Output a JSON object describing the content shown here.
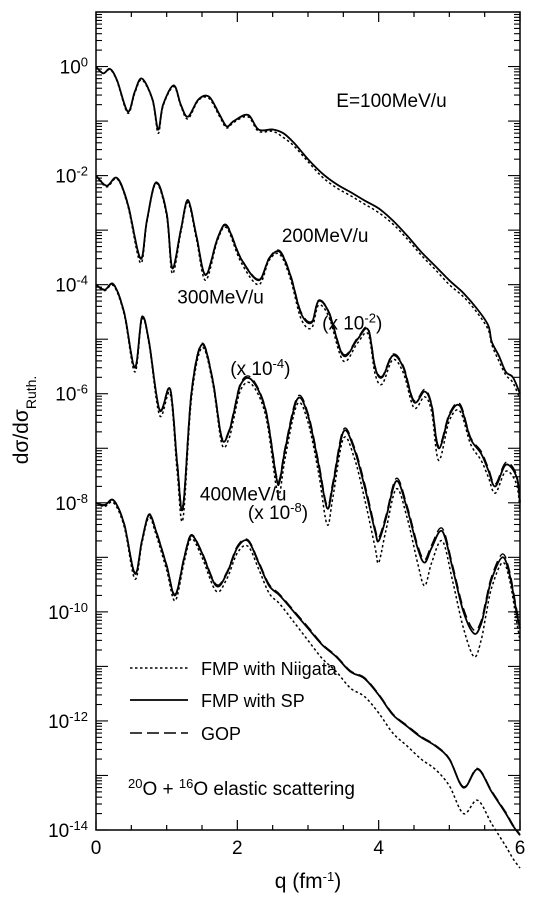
{
  "chart_data": {
    "type": "line",
    "xlabel": {
      "base": "q (fm",
      "sup": "-1",
      "tail": ")"
    },
    "ylabel": {
      "main": "dσ/dσ",
      "sub": "Ruth."
    },
    "xlim": [
      0,
      6
    ],
    "ylim": [
      1e-14,
      10
    ],
    "yscale": "log",
    "x_ticks": [
      "0",
      "2",
      "4",
      "6"
    ],
    "x_tick_values": [
      0,
      2,
      4,
      6
    ],
    "y_ticks": [
      {
        "value": 1,
        "base": "10",
        "exp": "0"
      },
      {
        "value": 0.01,
        "base": "10",
        "exp": "-2"
      },
      {
        "value": 0.0001,
        "base": "10",
        "exp": "-4"
      },
      {
        "value": 1e-06,
        "base": "10",
        "exp": "-6"
      },
      {
        "value": 1e-08,
        "base": "10",
        "exp": "-8"
      },
      {
        "value": 1e-10,
        "base": "10",
        "exp": "-10"
      },
      {
        "value": 1e-12,
        "base": "10",
        "exp": "-12"
      },
      {
        "value": 1e-14,
        "base": "10",
        "exp": "-14"
      }
    ],
    "annotations": [
      {
        "text": "E=100MeV/u",
        "q": 3.4,
        "y": 0.18
      },
      {
        "text": "200MeV/u",
        "q": 2.63,
        "y": 0.0006
      },
      {
        "text": "(x 10",
        "sup": "-2",
        "tail": ")",
        "q": 3.2,
        "y": 1.5e-05
      },
      {
        "text": "300MeV/u",
        "q": 1.15,
        "y": 4.5e-05
      },
      {
        "text": "(x 10",
        "sup": "-4",
        "tail": ")",
        "q": 1.9,
        "y": 2.2e-06
      },
      {
        "text": "400MeV/u",
        "q": 1.47,
        "y": 1.1e-08
      },
      {
        "text": "(x 10",
        "sup": "-8",
        "tail": ")",
        "q": 2.15,
        "y": 5e-09
      }
    ],
    "legend": {
      "placement": "bottom-left",
      "entries": [
        {
          "label": "FMP with Niigata",
          "dash": "dotted"
        },
        {
          "label": "FMP with SP",
          "dash": "solid"
        },
        {
          "label": "GOP",
          "dash": "dashed"
        }
      ]
    },
    "reaction_label": {
      "sup1": "20",
      "part1": "O + ",
      "sup2": "16",
      "part2": "O elastic scattering"
    },
    "series": [
      {
        "name": "E=100MeV/u",
        "q": [
          0.0,
          0.1,
          0.2,
          0.3,
          0.45,
          0.55,
          0.65,
          0.8,
          0.88,
          0.95,
          1.1,
          1.2,
          1.3,
          1.45,
          1.6,
          1.75,
          1.85,
          1.95,
          2.15,
          2.3,
          2.5,
          2.65,
          2.8,
          3.0,
          3.2,
          3.4,
          3.6,
          3.8,
          4.0,
          4.2,
          4.4,
          4.6,
          4.8,
          5.0,
          5.2,
          5.4,
          5.55,
          5.6,
          5.7,
          5.8,
          5.9,
          6.0
        ],
        "sp": [
          1.0,
          0.75,
          0.9,
          0.55,
          0.15,
          0.35,
          0.6,
          0.25,
          0.07,
          0.2,
          0.45,
          0.2,
          0.12,
          0.25,
          0.28,
          0.13,
          0.08,
          0.1,
          0.13,
          0.07,
          0.07,
          0.06,
          0.04,
          0.02,
          0.011,
          0.007,
          0.005,
          0.0035,
          0.0025,
          0.0015,
          0.0008,
          0.0004,
          0.00022,
          0.00012,
          7e-05,
          3.5e-05,
          1.8e-05,
          9e-06,
          5e-06,
          2.5e-06,
          2e-06,
          1e-06
        ],
        "niigata": [
          1.0,
          0.75,
          0.88,
          0.53,
          0.14,
          0.33,
          0.57,
          0.24,
          0.06,
          0.19,
          0.43,
          0.19,
          0.11,
          0.24,
          0.26,
          0.12,
          0.075,
          0.095,
          0.12,
          0.065,
          0.065,
          0.05,
          0.035,
          0.018,
          0.0095,
          0.006,
          0.0043,
          0.003,
          0.0021,
          0.0013,
          0.0007,
          0.00035,
          0.00019,
          0.0001,
          6e-05,
          3e-05,
          1.5e-05,
          8e-06,
          4e-06,
          2.2e-06,
          1.6e-06,
          8e-07
        ],
        "gop": [
          1.0,
          0.75,
          0.9,
          0.55,
          0.15,
          0.35,
          0.6,
          0.25,
          0.07,
          0.2,
          0.45,
          0.2,
          0.12,
          0.25,
          0.28,
          0.13,
          0.08,
          0.1,
          0.13,
          0.07,
          0.07,
          0.06,
          0.04,
          0.02,
          0.011,
          0.007,
          0.005,
          0.0035,
          0.0025,
          0.0015,
          0.0008,
          0.0004,
          0.00022,
          0.00012,
          7e-05,
          3.5e-05,
          1.8e-05,
          9e-06,
          5e-06,
          2.5e-06,
          2e-06,
          1e-06
        ]
      },
      {
        "name": "200MeV/u (x 10^-2)",
        "q": [
          0.0,
          0.15,
          0.3,
          0.45,
          0.63,
          0.72,
          0.85,
          1.0,
          1.08,
          1.2,
          1.3,
          1.42,
          1.55,
          1.72,
          1.85,
          2.05,
          2.3,
          2.45,
          2.6,
          2.75,
          2.9,
          3.05,
          3.15,
          3.3,
          3.5,
          3.7,
          3.85,
          3.95,
          4.05,
          4.2,
          4.35,
          4.5,
          4.65,
          4.75,
          4.85,
          5.0,
          5.15,
          5.3,
          5.45,
          5.55,
          5.65,
          5.8,
          5.95,
          6.0
        ],
        "sp": [
          0.01,
          0.0065,
          0.009,
          0.003,
          0.0003,
          0.0015,
          0.0075,
          0.002,
          0.0002,
          0.001,
          0.0035,
          0.0008,
          0.00015,
          0.0007,
          0.0012,
          0.0003,
          0.00012,
          0.0003,
          0.0004,
          0.00015,
          3e-05,
          2e-05,
          5e-05,
          3e-05,
          5e-06,
          1e-05,
          1.5e-05,
          3e-06,
          2e-06,
          5e-06,
          3e-06,
          7e-07,
          1.1e-06,
          6e-07,
          1e-07,
          4e-07,
          6e-07,
          1.5e-07,
          8e-08,
          4e-08,
          2e-08,
          5e-08,
          3e-08,
          1e-08
        ],
        "niigata": [
          0.01,
          0.0062,
          0.0087,
          0.0028,
          0.00025,
          0.0014,
          0.0072,
          0.0018,
          0.00016,
          0.0009,
          0.0032,
          0.0007,
          0.00012,
          0.00065,
          0.0011,
          0.00026,
          0.0001,
          0.00028,
          0.00036,
          0.00013,
          2.4e-05,
          1.6e-05,
          4.2e-05,
          2.5e-05,
          4e-06,
          8.5e-06,
          1.25e-05,
          2.3e-06,
          1.5e-06,
          4.2e-06,
          2.4e-06,
          5.5e-07,
          8.8e-07,
          4.6e-07,
          6e-08,
          3.2e-07,
          4.8e-07,
          1.2e-07,
          6e-08,
          3e-08,
          1.5e-08,
          3.8e-08,
          2.2e-08,
          7e-09
        ],
        "gop": [
          0.01,
          0.0065,
          0.0091,
          0.0031,
          0.00031,
          0.0015,
          0.0077,
          0.0021,
          0.00021,
          0.00102,
          0.0036,
          0.00082,
          0.000155,
          0.00072,
          0.00124,
          0.00031,
          0.000125,
          0.00031,
          0.00042,
          0.000155,
          3.2e-05,
          2.1e-05,
          5.2e-05,
          3.1e-05,
          5.3e-06,
          1.05e-05,
          1.6e-05,
          3.2e-06,
          2.1e-06,
          5.3e-06,
          3.2e-06,
          7.5e-07,
          1.2e-06,
          6.4e-07,
          1.1e-07,
          4.3e-07,
          6.5e-07,
          1.6e-07,
          8.8e-08,
          4.4e-08,
          2.2e-08,
          5.5e-08,
          3.3e-08,
          1.1e-08
        ]
      },
      {
        "name": "300MeV/u (x 10^-4)",
        "q": [
          0.0,
          0.12,
          0.25,
          0.4,
          0.55,
          0.65,
          0.75,
          0.9,
          1.05,
          1.15,
          1.23,
          1.35,
          1.5,
          1.65,
          1.78,
          1.88,
          1.95,
          2.05,
          2.2,
          2.4,
          2.55,
          2.6,
          2.68,
          2.85,
          3.0,
          3.15,
          3.27,
          3.35,
          3.5,
          3.65,
          3.8,
          3.95,
          4.0,
          4.1,
          4.25,
          4.4,
          4.55,
          4.65,
          4.75,
          4.9,
          5.05,
          5.2,
          5.35,
          5.45,
          5.52,
          5.6,
          5.75,
          5.85,
          5.95,
          6.0
        ],
        "sp": [
          0.0001,
          8e-05,
          0.0001,
          3e-05,
          3e-06,
          2.5e-05,
          9e-06,
          5e-07,
          1.2e-06,
          5e-08,
          8e-09,
          1e-06,
          8e-06,
          1.8e-06,
          1.5e-07,
          2e-07,
          4.5e-07,
          1.5e-06,
          1.8e-06,
          5e-07,
          3e-08,
          2.5e-08,
          1e-07,
          8e-07,
          4e-07,
          5e-08,
          8e-09,
          2e-08,
          2e-07,
          1e-07,
          2e-08,
          3e-09,
          2e-09,
          5e-09,
          2.5e-08,
          8e-09,
          1.5e-09,
          8e-10,
          1.5e-09,
          3e-09,
          6e-10,
          1e-10,
          4e-11,
          6e-11,
          1.5e-10,
          4e-10,
          1e-09,
          5e-10,
          1e-10,
          5e-11
        ],
        "niigata": [
          0.0001,
          7.8e-05,
          9.5e-05,
          2.8e-05,
          2.5e-06,
          2.3e-05,
          8.3e-06,
          4e-07,
          1e-06,
          3.5e-08,
          5e-09,
          8e-07,
          7e-06,
          1.6e-06,
          1.2e-07,
          1.5e-07,
          3.5e-07,
          1.2e-06,
          1.5e-06,
          4e-07,
          2e-08,
          1.5e-08,
          7e-08,
          6.5e-07,
          3e-07,
          3.5e-08,
          4e-09,
          1.2e-08,
          1.5e-07,
          7e-08,
          1.2e-08,
          1.5e-09,
          8e-10,
          3e-09,
          1.8e-08,
          5.5e-09,
          8e-10,
          3e-10,
          8e-10,
          2e-09,
          3.5e-10,
          5e-11,
          1.5e-11,
          3e-11,
          9e-11,
          2.8e-10,
          8e-10,
          4e-10,
          7e-11,
          3e-11
        ],
        "gop": [
          0.0001,
          8.2e-05,
          0.000102,
          3.1e-05,
          3.1e-06,
          2.6e-05,
          9.3e-06,
          5.2e-07,
          1.25e-06,
          5.5e-08,
          9e-09,
          1.1e-06,
          8.4e-06,
          1.9e-06,
          1.6e-07,
          2.1e-07,
          4.8e-07,
          1.6e-06,
          1.95e-06,
          5.3e-07,
          3.3e-08,
          2.8e-08,
          1.1e-07,
          8.8e-07,
          4.4e-07,
          5.6e-08,
          9e-09,
          2.3e-08,
          2.2e-07,
          1.1e-07,
          2.3e-08,
          3.4e-09,
          2.3e-09,
          5.6e-09,
          2.8e-08,
          9e-09,
          1.7e-09,
          9e-10,
          1.7e-09,
          3.4e-09,
          6.8e-10,
          1.15e-10,
          4.6e-11,
          6.8e-11,
          1.7e-10,
          4.5e-10,
          1.15e-09,
          5.7e-10,
          1.15e-10,
          5.7e-11
        ]
      },
      {
        "name": "400MeV/u (x 10^-8)",
        "q": [
          0.0,
          0.12,
          0.25,
          0.4,
          0.55,
          0.65,
          0.75,
          0.85,
          1.0,
          1.12,
          1.25,
          1.35,
          1.5,
          1.7,
          1.85,
          2.0,
          2.15,
          2.3,
          2.45,
          2.6,
          2.8,
          3.0,
          3.2,
          3.4,
          3.6,
          3.8,
          4.0,
          4.2,
          4.4,
          4.6,
          4.8,
          5.0,
          5.2,
          5.4,
          5.6,
          5.8,
          5.9,
          6.0
        ],
        "sp": [
          1e-08,
          9e-09,
          1.1e-08,
          4e-09,
          5e-10,
          2e-09,
          6e-09,
          3e-09,
          7e-10,
          2e-10,
          1e-09,
          2.5e-09,
          1.2e-09,
          3e-10,
          5e-10,
          1.5e-09,
          2e-09,
          8e-10,
          3e-10,
          2e-10,
          1e-10,
          5e-11,
          2.5e-11,
          1.5e-11,
          8e-12,
          6e-12,
          3e-12,
          1.3e-12,
          8e-13,
          5e-13,
          3.5e-13,
          2e-13,
          6e-14,
          1.3e-13,
          5e-14,
          2e-14,
          1.2e-14,
          8e-15
        ],
        "niigata": [
          1e-08,
          8.5e-09,
          1e-08,
          3.6e-09,
          4e-10,
          1.8e-09,
          5.4e-09,
          2.6e-09,
          5.8e-10,
          1.6e-10,
          8.5e-10,
          2.2e-09,
          1e-09,
          2.4e-10,
          4e-10,
          1.2e-09,
          1.6e-09,
          6.2e-10,
          2.2e-10,
          1.4e-10,
          6.5e-11,
          3e-11,
          1.4e-11,
          8e-12,
          4e-12,
          2.8e-12,
          1.4e-12,
          6e-13,
          3.5e-13,
          2e-13,
          1.3e-13,
          6.5e-14,
          2e-14,
          3.5e-14,
          1.3e-14,
          5e-15,
          3e-15,
          2e-15
        ],
        "gop": [
          1e-08,
          9.2e-09,
          1.12e-08,
          4.1e-09,
          5.2e-10,
          2.05e-09,
          6.2e-09,
          3.1e-09,
          7.2e-10,
          2.1e-10,
          1.05e-09,
          2.6e-09,
          1.25e-09,
          3.2e-10,
          5.3e-10,
          1.6e-09,
          2.1e-09,
          8.5e-10,
          3.2e-10,
          2.1e-10,
          1.05e-10,
          5.3e-11,
          2.6e-11,
          1.55e-11,
          8.3e-12,
          6.2e-12,
          3.1e-12,
          1.35e-12,
          8.3e-13,
          5.2e-13,
          3.6e-13,
          2.05e-13,
          6.2e-14,
          1.35e-13,
          5.2e-14,
          2.1e-14,
          1.25e-14,
          8.3e-15
        ]
      }
    ]
  }
}
